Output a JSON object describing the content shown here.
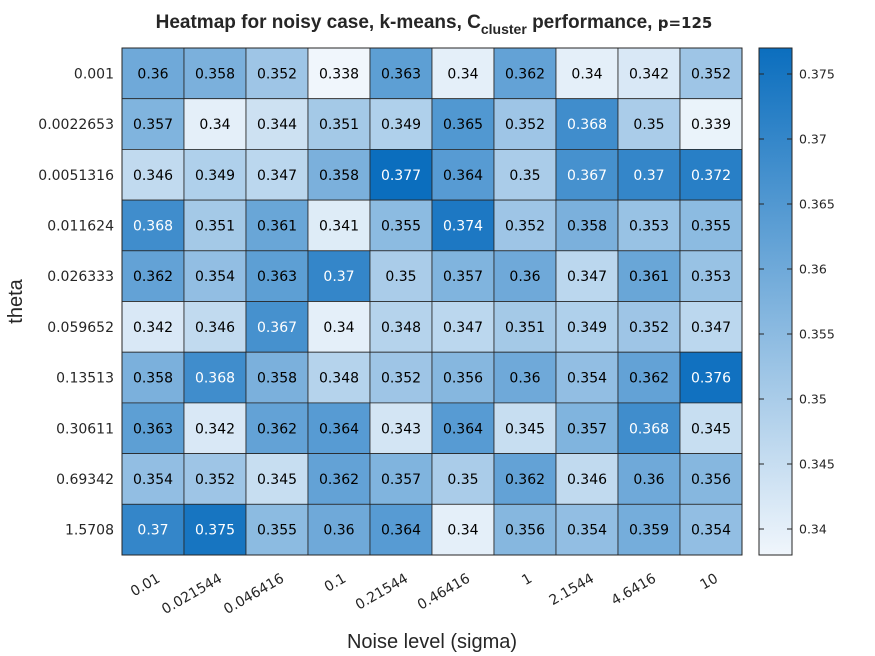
{
  "chart_data": {
    "type": "heatmap",
    "title": {
      "prefix": "Heatmap for noisy case, k-means, C",
      "subscript": "cluster",
      "middle": " performance, ",
      "p_text": "p=125"
    },
    "xlabel": "Noise level (sigma)",
    "ylabel": "theta",
    "x_categories": [
      "0.01",
      "0.021544",
      "0.046416",
      "0.1",
      "0.21544",
      "0.46416",
      "1",
      "2.1544",
      "4.6416",
      "10"
    ],
    "y_categories": [
      "0.001",
      "0.0022653",
      "0.0051316",
      "0.011624",
      "0.026333",
      "0.059652",
      "0.13513",
      "0.30611",
      "0.69342",
      "1.5708"
    ],
    "values": [
      [
        "0.36",
        "0.358",
        "0.352",
        "0.338",
        "0.363",
        "0.34",
        "0.362",
        "0.34",
        "0.342",
        "0.352"
      ],
      [
        "0.357",
        "0.34",
        "0.344",
        "0.351",
        "0.349",
        "0.365",
        "0.352",
        "0.368",
        "0.35",
        "0.339"
      ],
      [
        "0.346",
        "0.349",
        "0.347",
        "0.358",
        "0.377",
        "0.364",
        "0.35",
        "0.367",
        "0.37",
        "0.372"
      ],
      [
        "0.368",
        "0.351",
        "0.361",
        "0.341",
        "0.355",
        "0.374",
        "0.352",
        "0.358",
        "0.353",
        "0.355"
      ],
      [
        "0.362",
        "0.354",
        "0.363",
        "0.37",
        "0.35",
        "0.357",
        "0.36",
        "0.347",
        "0.361",
        "0.353"
      ],
      [
        "0.342",
        "0.346",
        "0.367",
        "0.34",
        "0.348",
        "0.347",
        "0.351",
        "0.349",
        "0.352",
        "0.347"
      ],
      [
        "0.358",
        "0.368",
        "0.358",
        "0.348",
        "0.352",
        "0.356",
        "0.36",
        "0.354",
        "0.362",
        "0.376"
      ],
      [
        "0.363",
        "0.342",
        "0.362",
        "0.364",
        "0.343",
        "0.364",
        "0.345",
        "0.357",
        "0.368",
        "0.345"
      ],
      [
        "0.354",
        "0.352",
        "0.345",
        "0.362",
        "0.357",
        "0.35",
        "0.362",
        "0.346",
        "0.36",
        "0.356"
      ],
      [
        "0.37",
        "0.375",
        "0.355",
        "0.36",
        "0.364",
        "0.34",
        "0.356",
        "0.354",
        "0.359",
        "0.354"
      ]
    ],
    "colorbar": {
      "ticks": [
        "0.34",
        "0.345",
        "0.35",
        "0.355",
        "0.36",
        "0.365",
        "0.37",
        "0.375"
      ],
      "range": [
        0.338,
        0.377
      ],
      "colormap": {
        "low": "#f0f6fc",
        "high": "#0b6ebe"
      }
    },
    "text_colors": {
      "light_cells": "#000000",
      "dark_cells": "#ffffff"
    }
  }
}
